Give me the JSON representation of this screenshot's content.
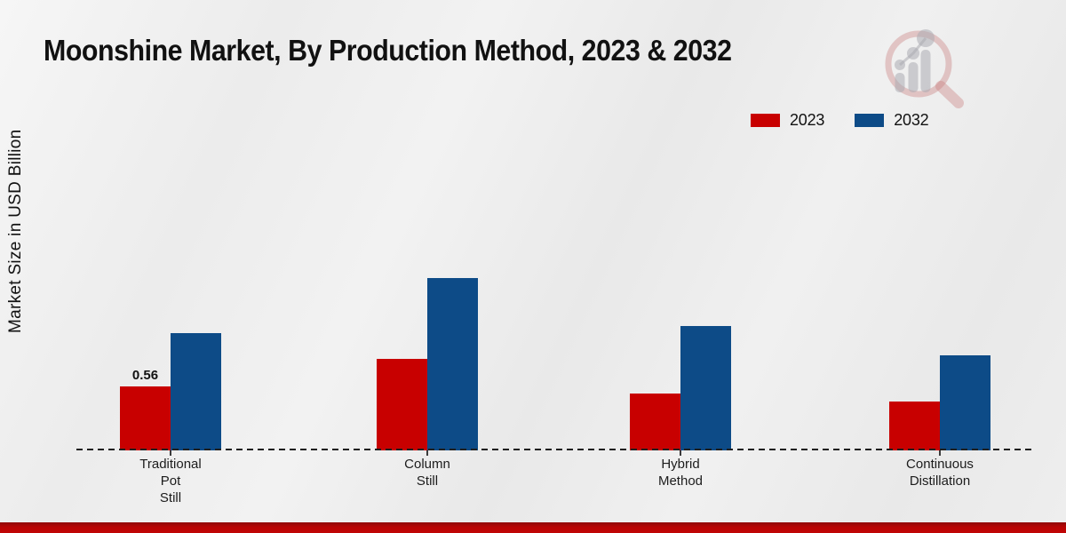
{
  "page": {
    "title": "Moonshine Market, By Production Method, 2023 & 2032",
    "y_axis_label": "Market Size in USD Billion"
  },
  "legend": {
    "items": [
      {
        "label": "2023",
        "color": "#c80000"
      },
      {
        "label": "2032",
        "color": "#0d4b87"
      }
    ]
  },
  "chart_data": {
    "type": "bar",
    "title": "Moonshine Market, By Production Method, 2023 & 2032",
    "xlabel": "",
    "ylabel": "Market Size in USD Billion",
    "categories": [
      "Traditional Pot Still",
      "Column Still",
      "Hybrid Method",
      "Continuous Distillation"
    ],
    "category_label_lines": [
      [
        "Traditional",
        "Pot",
        "Still"
      ],
      [
        "Column",
        "Still"
      ],
      [
        "Hybrid",
        "Method"
      ],
      [
        "Continuous",
        "Distillation"
      ]
    ],
    "series": [
      {
        "name": "2023",
        "color": "#c80000",
        "values": [
          0.56,
          0.8,
          0.5,
          0.43
        ],
        "data_labels": [
          "0.56",
          "",
          "",
          ""
        ]
      },
      {
        "name": "2032",
        "color": "#0d4b87",
        "values": [
          1.03,
          1.51,
          1.09,
          0.83
        ],
        "data_labels": [
          "",
          "",
          "",
          ""
        ]
      }
    ],
    "ylim": [
      0,
      1.6
    ],
    "grid": false,
    "legend_position": "top-right",
    "baseline_style": "dashed",
    "y_axis_ticks_shown": false
  },
  "watermark": {
    "name": "magnifier-bar-chart-logo"
  },
  "footer": {
    "accent_color": "#c10505"
  }
}
